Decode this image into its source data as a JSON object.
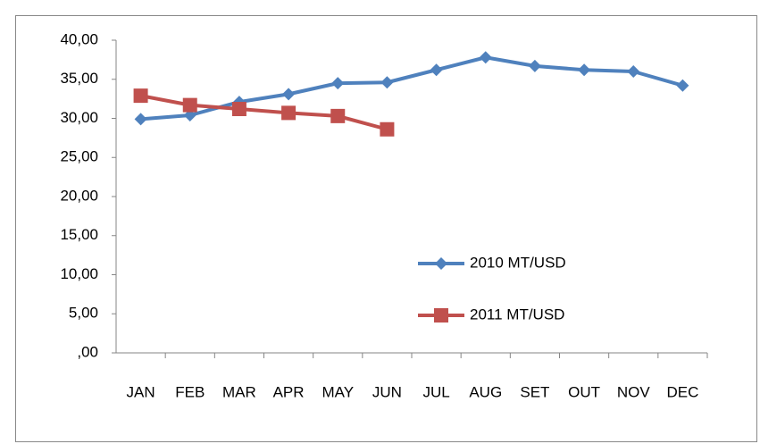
{
  "chart_data": {
    "type": "line",
    "categories": [
      "JAN",
      "FEB",
      "MAR",
      "APR",
      "MAY",
      "JUN",
      "JUL",
      "AUG",
      "SET",
      "OUT",
      "NOV",
      "DEC"
    ],
    "series": [
      {
        "name": "2010 MT/USD",
        "color": "#4f81bd",
        "marker": "diamond",
        "values": [
          29.9,
          30.4,
          32.1,
          33.1,
          34.5,
          34.6,
          36.2,
          37.8,
          36.7,
          36.2,
          36.0,
          34.2
        ]
      },
      {
        "name": "2011 MT/USD",
        "color": "#c0504d",
        "marker": "square",
        "values": [
          32.9,
          31.7,
          31.2,
          30.7,
          30.3,
          28.6,
          null,
          null,
          null,
          null,
          null,
          null
        ]
      }
    ],
    "ylim": [
      0,
      40
    ],
    "yticks": [
      {
        "value": 0,
        "label": ",00"
      },
      {
        "value": 5,
        "label": "5,00"
      },
      {
        "value": 10,
        "label": "10,00"
      },
      {
        "value": 15,
        "label": "15,00"
      },
      {
        "value": 20,
        "label": "20,00"
      },
      {
        "value": 25,
        "label": "25,00"
      },
      {
        "value": 30,
        "label": "30,00"
      },
      {
        "value": 35,
        "label": "35,00"
      },
      {
        "value": 40,
        "label": "40,00"
      }
    ],
    "grid": false,
    "legend": "right"
  }
}
